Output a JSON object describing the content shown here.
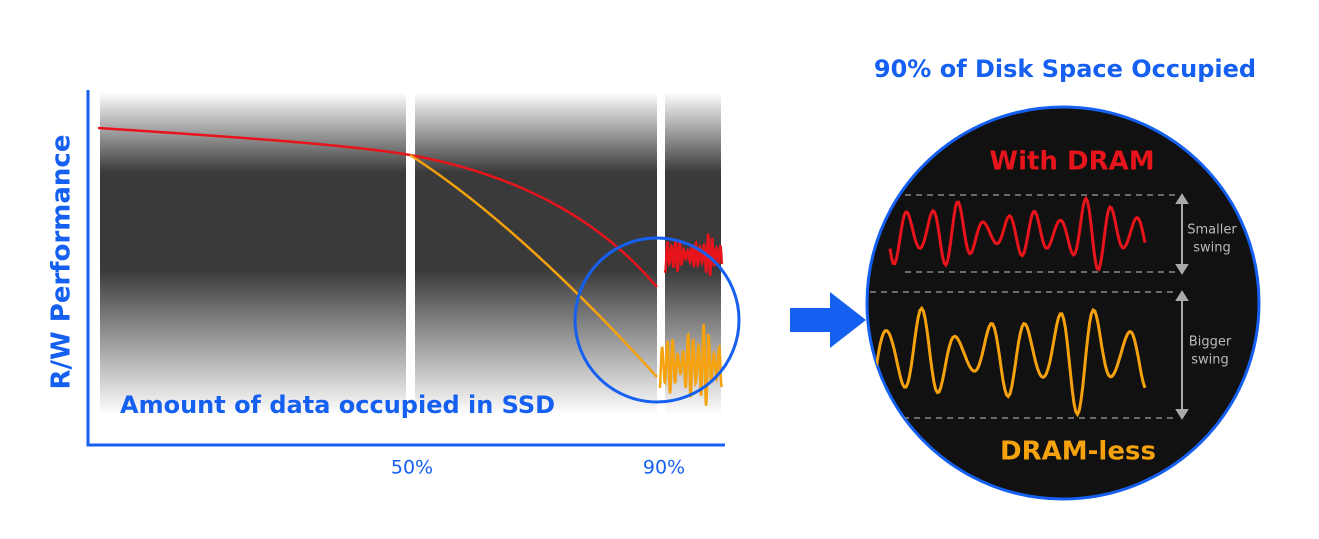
{
  "left_chart": {
    "y_axis_label": "R/W Performance",
    "x_axis_label": "Amount of data occupied in SSD",
    "ticks": [
      "50%",
      "90%"
    ]
  },
  "zoom": {
    "title": "90% of Disk Space Occupied",
    "top_label": "With DRAM",
    "bottom_label": "DRAM-less",
    "top_note": [
      "Smaller",
      "swing"
    ],
    "bottom_note": [
      "Bigger",
      "swing"
    ]
  }
}
